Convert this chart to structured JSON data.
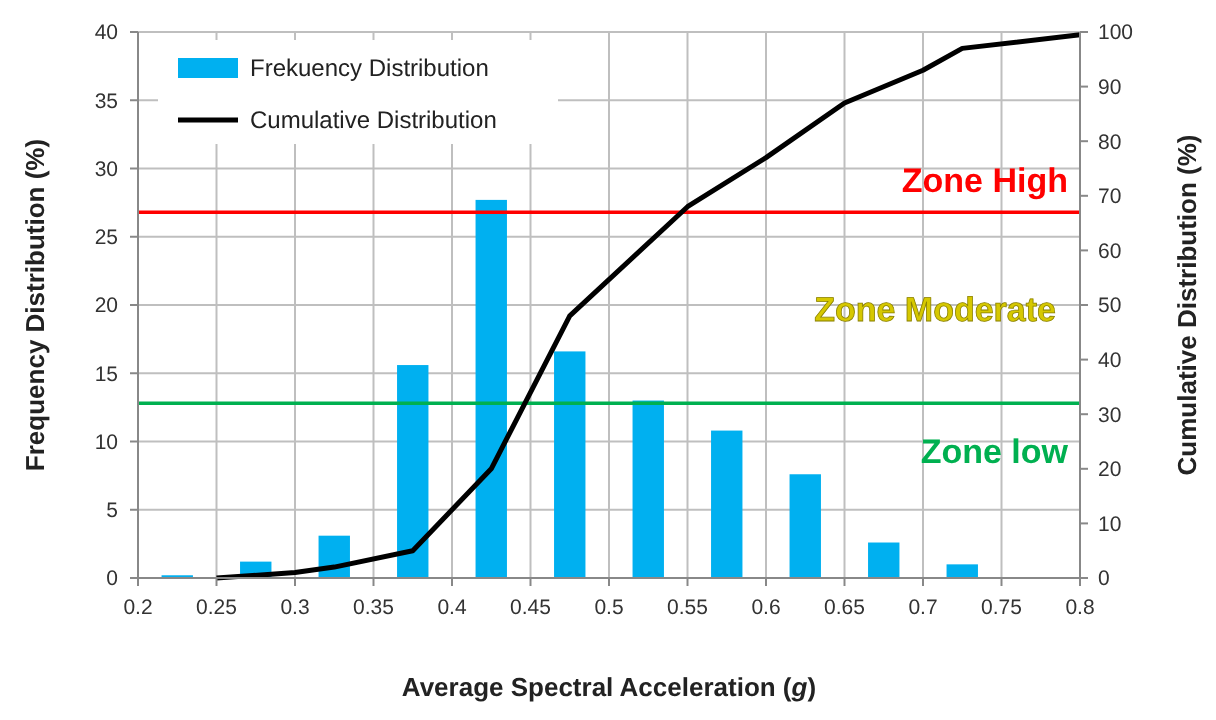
{
  "chart_data": {
    "type": "bar",
    "xlabel": "Average Spectral Acceleration (g)",
    "ylabel": "Frequency Distribution (%)",
    "y2label": "Cumulative Distribution (%)",
    "series": [
      {
        "name": "Frekuency Distribution",
        "color": "#00b0f0",
        "x": [
          0.225,
          0.275,
          0.325,
          0.375,
          0.425,
          0.475,
          0.525,
          0.575,
          0.625,
          0.675,
          0.725
        ],
        "values": [
          0.2,
          1.2,
          3.1,
          15.6,
          27.7,
          16.6,
          13.0,
          10.8,
          7.6,
          2.6,
          1.0
        ]
      },
      {
        "name": "Cumulative Distribution",
        "type": "line",
        "axis": "y2",
        "color": "#000000",
        "x": [
          0.25,
          0.3,
          0.325,
          0.375,
          0.425,
          0.475,
          0.55,
          0.6,
          0.65,
          0.7,
          0.725,
          0.8
        ],
        "values": [
          0,
          1,
          2,
          5,
          20,
          48,
          68,
          77,
          87,
          93,
          97,
          99.5
        ]
      }
    ],
    "xlim": [
      0.2,
      0.8
    ],
    "xticks": [
      0.2,
      0.25,
      0.3,
      0.35,
      0.4,
      0.45,
      0.5,
      0.55,
      0.6,
      0.65,
      0.7,
      0.75,
      0.8
    ],
    "ylim": [
      0,
      40
    ],
    "yticks": [
      0,
      5,
      10,
      15,
      20,
      25,
      30,
      35,
      40
    ],
    "y2lim": [
      0,
      100
    ],
    "y2ticks": [
      0,
      10,
      20,
      30,
      40,
      50,
      60,
      70,
      80,
      90,
      100
    ],
    "ref_lines": [
      {
        "axis": "y",
        "value": 26.8,
        "label": "Zone High",
        "color": "#ff0000"
      },
      {
        "axis": "y",
        "value": 12.8,
        "label": "Zone low",
        "color": "#00b050"
      }
    ],
    "annotations": [
      "Zone Moderate"
    ],
    "grid": true,
    "legend": "top left",
    "marker": "none",
    "line_style": "solid"
  }
}
